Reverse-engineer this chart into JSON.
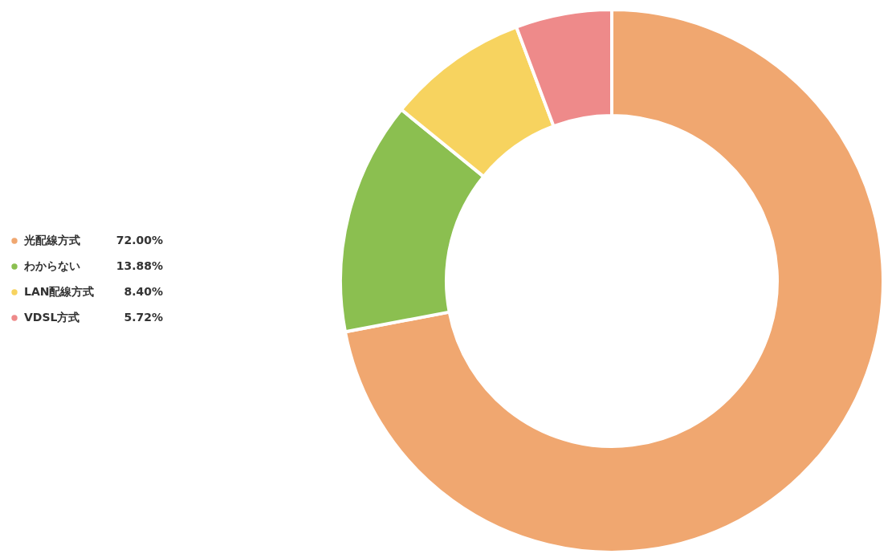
{
  "chart_data": {
    "type": "donut",
    "categories": [
      "光配線方式",
      "わからない",
      "LAN配線方式",
      "VDSL方式"
    ],
    "values": [
      72.0,
      13.88,
      8.4,
      5.72
    ],
    "colors": [
      "#f0a770",
      "#8bbf50",
      "#f7d35f",
      "#ee8a8a"
    ],
    "value_labels": [
      "72.00%",
      "13.88%",
      "8.40%",
      "5.72%"
    ],
    "legend": "left"
  }
}
